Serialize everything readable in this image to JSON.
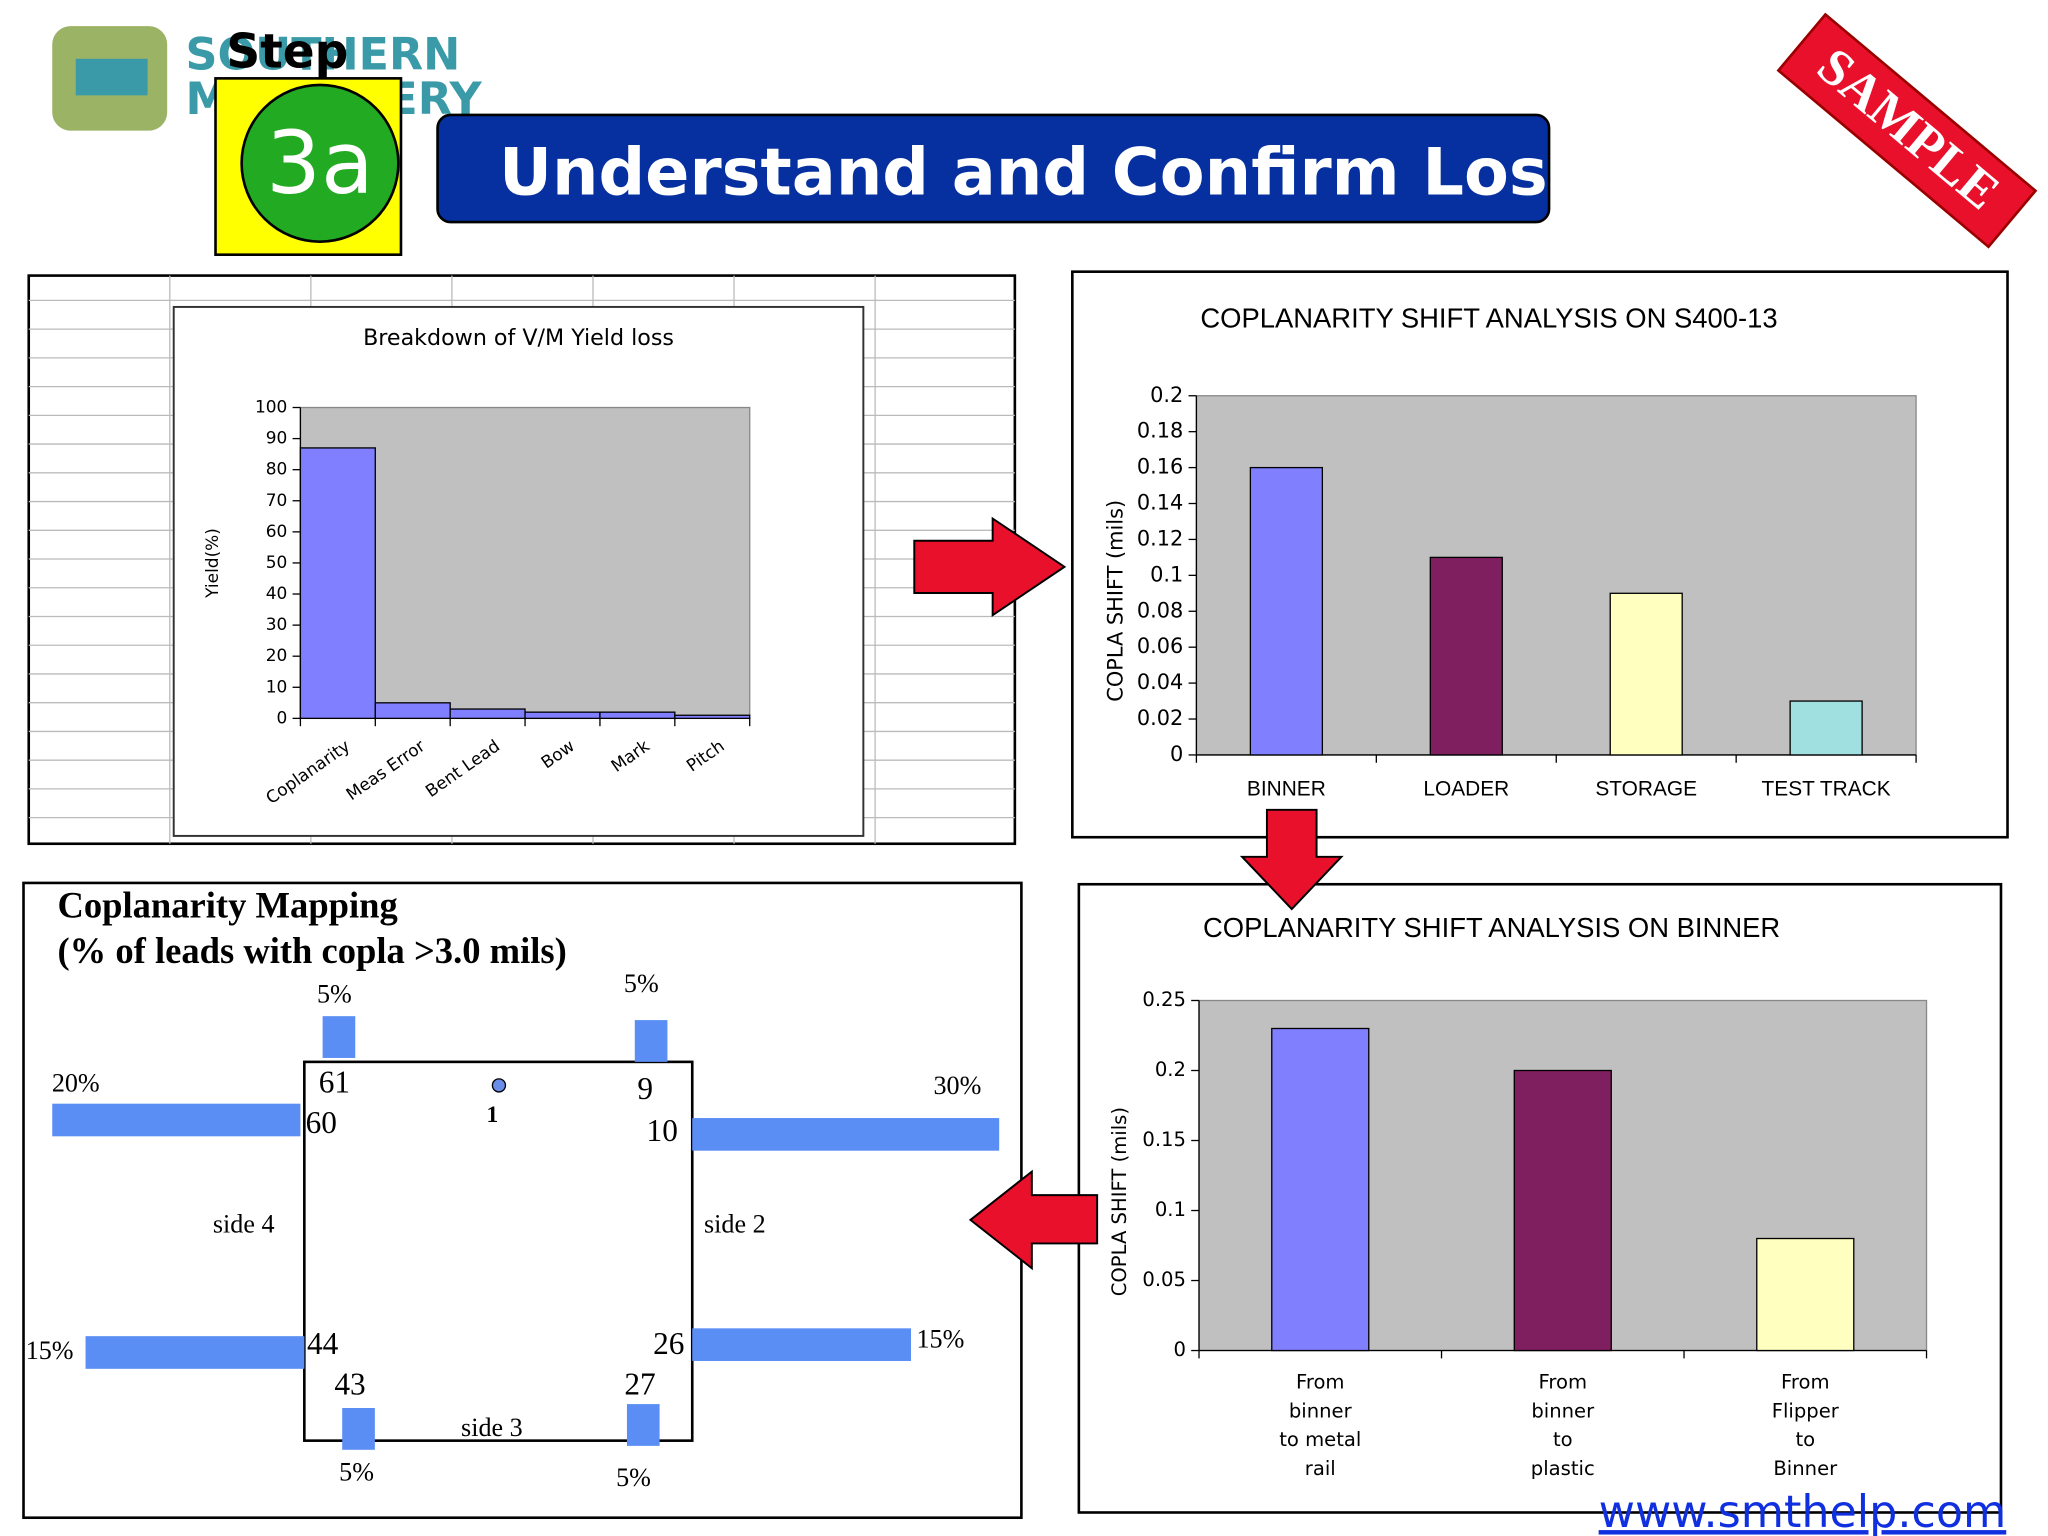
{
  "header": {
    "title": "Understand and Confirm Losses",
    "step": "Step",
    "step_number": "3a",
    "logo": [
      "SOUTHERN",
      "MACHINERY"
    ],
    "stamp": "SAMPLE",
    "url": "www.smthelp.com"
  },
  "chart_data": [
    {
      "type": "bar",
      "title": "Breakdown of V/M Yield loss",
      "y_label": "Yield(%)",
      "categories": [
        "Coplanarity",
        "Meas Error",
        "Bent Lead",
        "Bow",
        "Mark",
        "Pitch"
      ],
      "values": [
        87,
        5,
        3,
        2,
        2,
        1
      ],
      "color": "#7f7fff",
      "plot_color": "#c0c0c0",
      "ylim": [
        0,
        100
      ],
      "yticks": [
        0,
        10,
        20,
        30,
        40,
        50,
        60,
        70,
        80,
        90,
        100
      ]
    },
    {
      "type": "bar",
      "title": "COPLANARITY SHIFT ANALYSIS ON S400-13",
      "y_label": "COPLA SHIFT (mils)",
      "categories": [
        "BINNER",
        "LOADER",
        "STORAGE",
        "TEST TRACK"
      ],
      "values": [
        0.16,
        0.11,
        0.09,
        0.03
      ],
      "colors": [
        "#8080ff",
        "#7f1f5f",
        "#ffffc0",
        "#a0e0e0"
      ],
      "plot_color": "#c0c0c0",
      "ylim": [
        0,
        0.2
      ],
      "yticks": [
        0,
        0.02,
        0.04,
        0.06,
        0.08,
        0.1,
        0.12,
        0.14,
        0.16,
        0.18,
        0.2
      ]
    },
    {
      "type": "bar",
      "title": "COPLANARITY  SHIFT ANALYSIS ON BINNER",
      "y_label": "COPLA SHIFT (mils)",
      "categories": [
        [
          "From",
          "binner",
          "to metal",
          "rail"
        ],
        [
          "From",
          "binner",
          "to",
          "plastic"
        ],
        [
          "From",
          "Flipper",
          "to",
          "Binner"
        ]
      ],
      "values": [
        0.23,
        0.2,
        0.08
      ],
      "colors": [
        "#8080ff",
        "#7f1f5f",
        "#ffffc0"
      ],
      "plot_color": "#c0c0c0",
      "ylim": [
        0,
        0.25
      ],
      "yticks": [
        0,
        0.05,
        0.1,
        0.15,
        0.2,
        0.25
      ]
    }
  ],
  "mapping": {
    "title": [
      "Coplanarity Mapping",
      "(% of leads with copla >3.0 mils)"
    ],
    "leads": [
      {
        "value": 5,
        "label": "5%"
      },
      {
        "value": 5,
        "label": "5%"
      },
      {
        "value": 20,
        "label": "20%"
      },
      {
        "value": 30,
        "label": "30%"
      },
      {
        "value": 15,
        "label": "15%"
      },
      {
        "value": 15,
        "label": "15%"
      },
      {
        "value": 5,
        "label": "5%"
      },
      {
        "value": 5,
        "label": "5%"
      }
    ],
    "pins": [
      "61",
      "60",
      "9",
      "10",
      "44",
      "43",
      "26",
      "27",
      "1"
    ],
    "sides": [
      "side 4",
      "side 2",
      "side 3"
    ]
  }
}
